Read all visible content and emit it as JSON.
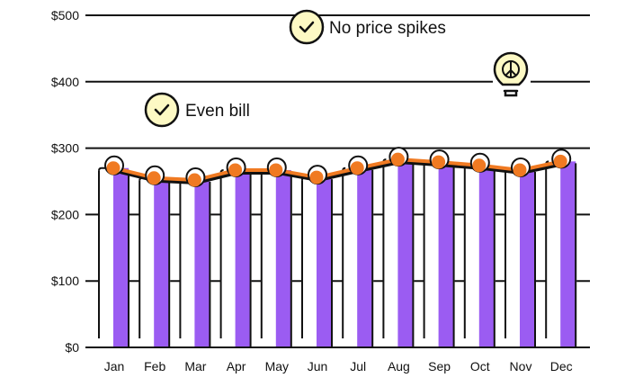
{
  "chart_data": {
    "type": "bar",
    "categories": [
      "Jan",
      "Feb",
      "Mar",
      "Apr",
      "May",
      "Jun",
      "Jul",
      "Aug",
      "Sep",
      "Oct",
      "Nov",
      "Dec"
    ],
    "values": [
      270,
      255,
      252,
      267,
      267,
      256,
      270,
      283,
      279,
      274,
      267,
      280
    ],
    "y_ticks": [
      "$0",
      "$100",
      "$200",
      "$300",
      "$400",
      "$500"
    ],
    "ylim": [
      0,
      500
    ],
    "grid": true,
    "annotations": [
      {
        "text": "No price spikes",
        "icon": "check-circle-icon"
      },
      {
        "text": "Even bill",
        "icon": "check-circle-icon"
      }
    ],
    "decoration_icon": "lightbulb-peace-icon",
    "colors": {
      "bar": "#9b5cf2",
      "line": "#f07a22",
      "check_fill": "#fdf9c4",
      "ink": "#111111"
    }
  }
}
